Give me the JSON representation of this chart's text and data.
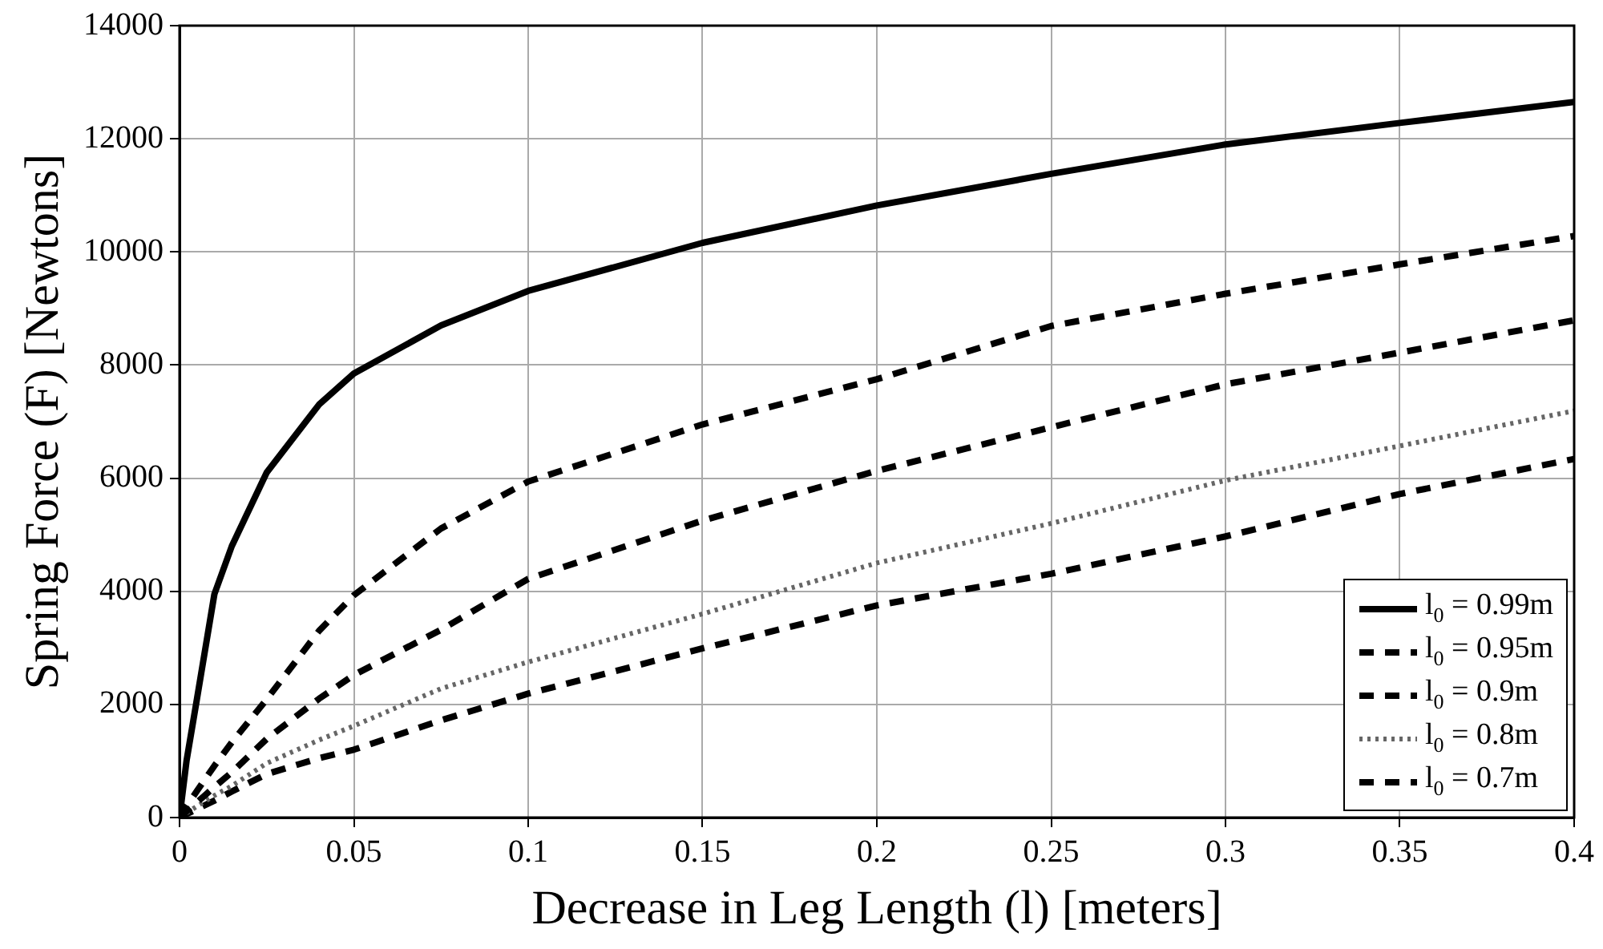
{
  "chart_data": {
    "type": "line",
    "xlabel": "Decrease in Leg Length (l) [meters]",
    "ylabel": "Spring Force (F) [Newtons]",
    "x": [
      0,
      0.002,
      0.005,
      0.01,
      0.015,
      0.025,
      0.04,
      0.05,
      0.075,
      0.1,
      0.15,
      0.2,
      0.25,
      0.3,
      0.35,
      0.4
    ],
    "series": [
      {
        "name": "l$_{0}$ = 0.99m",
        "color": "#000000",
        "line_style": "solid",
        "values": [
          0,
          1000,
          2100,
          3950,
          4800,
          6100,
          7300,
          7850,
          8700,
          9310,
          10160,
          10820,
          11380,
          11900,
          12280,
          12650
        ]
      },
      {
        "name": "l$_{0}$ = 0.95m",
        "color": "#000000",
        "line_style": "dashed",
        "values": [
          0,
          200,
          470,
          915,
          1330,
          2090,
          3300,
          3930,
          5110,
          5940,
          6950,
          7750,
          8690,
          9260,
          9780,
          10280
        ]
      },
      {
        "name": "l$_{0}$ = 0.9m",
        "color": "#000000",
        "line_style": "dashed",
        "values": [
          0,
          110,
          270,
          540,
          800,
          1390,
          2100,
          2520,
          3320,
          4220,
          5250,
          6130,
          6900,
          7660,
          8220,
          8790
        ]
      },
      {
        "name": "l$_{0}$ = 0.8m",
        "color": "#666666",
        "line_style": "dotted",
        "values": [
          0,
          80,
          200,
          390,
          560,
          960,
          1370,
          1620,
          2280,
          2750,
          3600,
          4500,
          5200,
          5960,
          6570,
          7190
        ]
      },
      {
        "name": "l$_{0}$ = 0.7m",
        "color": "#000000",
        "line_style": "dashed",
        "values": [
          0,
          60,
          150,
          300,
          460,
          770,
          1050,
          1200,
          1720,
          2190,
          2990,
          3750,
          4310,
          4970,
          5720,
          6340
        ]
      }
    ],
    "xlim": [
      0,
      0.4
    ],
    "xticks": [
      0,
      0.05,
      0.1,
      0.15,
      0.2,
      0.25,
      0.3,
      0.35,
      0.4
    ],
    "ylim": [
      0,
      14000
    ],
    "yticks": [
      0,
      2000,
      4000,
      6000,
      8000,
      10000,
      12000,
      14000
    ],
    "grid": true,
    "legend": "bottom right"
  }
}
